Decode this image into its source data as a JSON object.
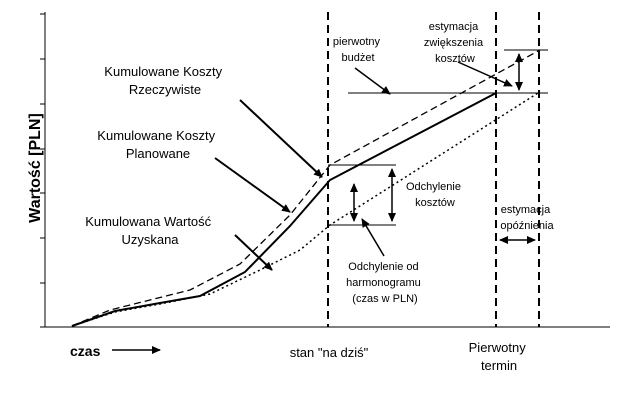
{
  "axis": {
    "ylabel": "Wartość [PLN]",
    "xlabel": "czas"
  },
  "labels": {
    "cumulative_actual": [
      "Kumulowane Koszty",
      "Rzeczywiste"
    ],
    "cumulative_planned": [
      "Kumulowane Koszty",
      "Planowane"
    ],
    "earned_value": [
      "Kumulowana Wartość",
      "Uzyskana"
    ],
    "original_budget": [
      "pierwotny",
      "budżet"
    ],
    "cost_increase_estimate": [
      "estymacja",
      "zwiększenia",
      "kosztów"
    ],
    "cost_variance": [
      "Odchylenie",
      "kosztów"
    ],
    "schedule_variance": [
      "Odchylenie od",
      "harmonogramu",
      "(czas w PLN)"
    ],
    "delay_estimate": [
      "estymacja",
      "opóźnienia"
    ],
    "status_date": "stan \"na dziś\"",
    "original_deadline": [
      "Pierwotny",
      "termin"
    ]
  },
  "colors": {
    "ink": "#000000",
    "background": "#ffffff"
  }
}
